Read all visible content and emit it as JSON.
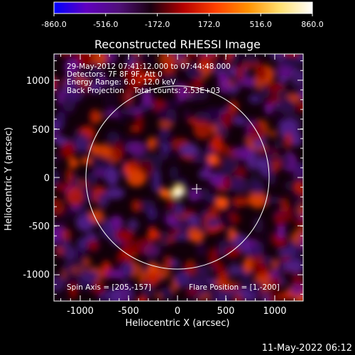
{
  "window": {
    "timestamp": "11-May-2022 06:12"
  },
  "colorbar": {
    "ticks": [
      "-860.0",
      "-516.0",
      "-172.0",
      "172.0",
      "516.0",
      "860.0"
    ],
    "stops": [
      "#0000ff",
      "#6000c0",
      "#50107a",
      "#1a0010",
      "#b40000",
      "#ff4000",
      "#ff9000",
      "#ffe070",
      "#ffffff"
    ]
  },
  "plot": {
    "title": "Reconstructed RHESSI Image",
    "xlabel": "Heliocentric X (arcsec)",
    "ylabel": "Heliocentric Y (arcsec)",
    "xticks": [
      "-1000",
      "-500",
      "0",
      "500",
      "1000"
    ],
    "yticks": [
      "1000",
      "500",
      "0",
      "-500",
      "-1000"
    ],
    "info": [
      "29-May-2012 07:41:12.000 to 07:44:48.000",
      "Detectors: 7F 8F 9F, Att 0",
      "Energy Range: 6.0 - 12.0 keV",
      "Back Projection    Total counts: 2.53E+03"
    ],
    "spin_axis": "Spin Axis = [205,-157]",
    "flare_position": "Flare Position = [1,-200]"
  }
}
